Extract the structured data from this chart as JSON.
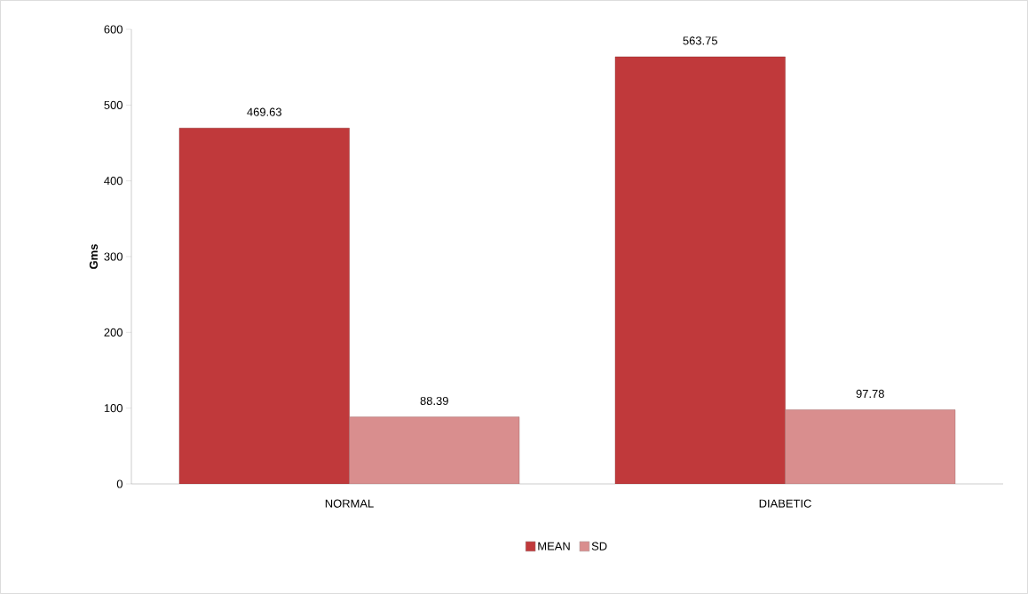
{
  "chart_data": {
    "type": "bar",
    "ylabel": "Gms",
    "categories": [
      "NORMAL",
      "DIABETIC"
    ],
    "series": [
      {
        "name": "MEAN",
        "color": "#c0393b",
        "values": [
          469.63,
          563.75
        ]
      },
      {
        "name": "SD",
        "color": "#d98e8e",
        "values": [
          88.39,
          97.78
        ]
      }
    ],
    "ylim": [
      0,
      600
    ],
    "yticks": [
      0,
      100,
      200,
      300,
      400,
      500,
      600
    ],
    "data_labels": true,
    "legend": "bottom",
    "grid": false
  }
}
